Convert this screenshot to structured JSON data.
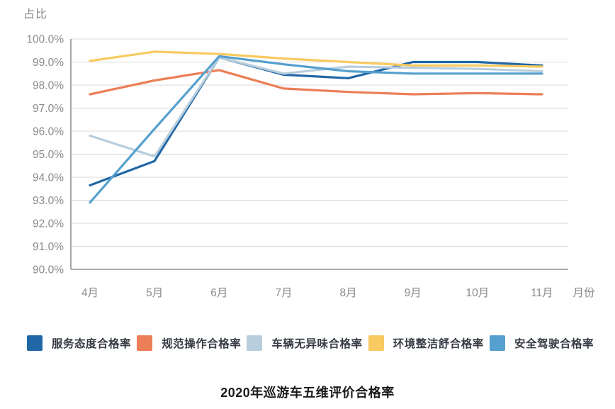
{
  "chart_data": {
    "type": "line",
    "title": "2020年巡游车五维评价合格率",
    "ylabel": "占比",
    "xlabel": "月份",
    "categories": [
      "4月",
      "5月",
      "6月",
      "7月",
      "8月",
      "9月",
      "10月",
      "11月"
    ],
    "y_ticks": [
      "100.0%",
      "99.0%",
      "98.0%",
      "97.0%",
      "96.0%",
      "95.0%",
      "94.0%",
      "93.0%",
      "92.0%",
      "91.0%",
      "90.0%"
    ],
    "ylim": [
      90,
      100
    ],
    "grid": true,
    "legend_position": "bottom",
    "series": [
      {
        "name": "服务态度合格率",
        "color": "#2167A5",
        "values": [
          93.65,
          94.7,
          99.2,
          98.45,
          98.3,
          99.0,
          99.0,
          98.85
        ]
      },
      {
        "name": "规范操作合格率",
        "color": "#EC7E57",
        "values": [
          97.6,
          98.2,
          98.65,
          97.85,
          97.7,
          97.6,
          97.65,
          97.6
        ]
      },
      {
        "name": "车辆无异味合格率",
        "color": "#B9CEDD",
        "values": [
          95.8,
          94.9,
          99.2,
          98.5,
          98.8,
          98.75,
          98.7,
          98.6
        ]
      },
      {
        "name": "环境整洁舒合格率",
        "color": "#F8CA61",
        "values": [
          99.05,
          99.45,
          99.35,
          99.15,
          99.0,
          98.85,
          98.85,
          98.8
        ]
      },
      {
        "name": "安全驾驶合格率",
        "color": "#55A0CF",
        "values": [
          92.9,
          96.1,
          99.25,
          98.9,
          98.6,
          98.5,
          98.5,
          98.5
        ]
      }
    ],
    "axis_colors": {
      "grid": "#D8D8D8",
      "axis": "#8f8f8f",
      "tick_text": "#8a8a8a"
    }
  }
}
